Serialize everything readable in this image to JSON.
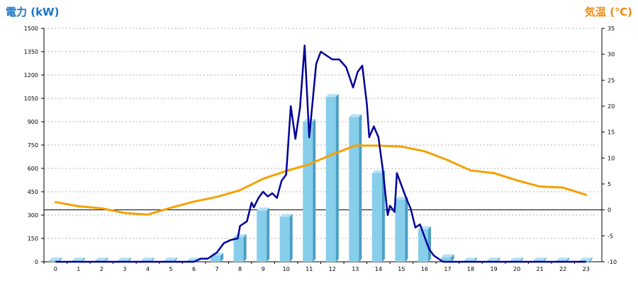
{
  "chart_data": {
    "type": "bar+line",
    "title_left": "電力 (kW)",
    "title_right": "気温 (℃)",
    "categories": [
      "0",
      "1",
      "2",
      "3",
      "4",
      "5",
      "6",
      "7",
      "8",
      "9",
      "10",
      "11",
      "12",
      "13",
      "14",
      "15",
      "16",
      "17",
      "18",
      "19",
      "20",
      "21",
      "22",
      "23"
    ],
    "ylim_left": [
      0,
      1500
    ],
    "yticks_left": [
      0,
      150,
      300,
      450,
      600,
      750,
      900,
      1050,
      1200,
      1350,
      1500
    ],
    "ylim_right": [
      -10,
      35
    ],
    "yticks_right": [
      -10,
      -5,
      0,
      5,
      10,
      15,
      20,
      25,
      30,
      35
    ],
    "grid": true,
    "colors": {
      "bar": "#87ceeb",
      "bar_side": "#4a9ec4",
      "bar_top": "#b7e1f5",
      "power_line": "#000099",
      "temp_line": "#f5a000",
      "title_left": "#1a74c7",
      "title_right": "#f08a12",
      "zero_line": "#000000",
      "grid": "#b0b0b0"
    },
    "series": [
      {
        "kind": "bar",
        "axis": "left",
        "values": [
          0,
          0,
          0,
          0,
          0,
          0,
          0,
          40,
          160,
          330,
          290,
          900,
          1060,
          930,
          570,
          400,
          210,
          30,
          0,
          0,
          0,
          0,
          0,
          0
        ]
      },
      {
        "kind": "line",
        "axis": "left",
        "x": [
          0,
          1,
          2,
          3,
          4,
          5,
          5.5,
          6,
          6.3,
          6.6,
          7,
          7.3,
          7.6,
          7.9,
          8,
          8.3,
          8.5,
          8.6,
          8.8,
          9,
          9.2,
          9.4,
          9.6,
          9.8,
          10,
          10.2,
          10.4,
          10.6,
          10.8,
          11,
          11.3,
          11.5,
          11.8,
          12,
          12.3,
          12.6,
          12.9,
          13.1,
          13.3,
          13.5,
          13.6,
          13.8,
          14,
          14.2,
          14.4,
          14.5,
          14.7,
          14.8,
          15,
          15.2,
          15.4,
          15.6,
          15.8,
          16,
          16.2,
          16.4,
          16.6,
          16.8,
          17,
          17.3,
          18,
          19,
          20,
          21,
          22,
          23
        ],
        "y": [
          0,
          0,
          0,
          0,
          0,
          0,
          0,
          0,
          20,
          20,
          60,
          120,
          140,
          150,
          230,
          260,
          380,
          350,
          410,
          450,
          420,
          440,
          410,
          520,
          560,
          1000,
          790,
          990,
          1390,
          800,
          1270,
          1350,
          1320,
          1300,
          1300,
          1250,
          1120,
          1220,
          1260,
          1010,
          800,
          870,
          800,
          580,
          300,
          360,
          320,
          570,
          490,
          410,
          340,
          220,
          240,
          160,
          80,
          40,
          20,
          0,
          0,
          0,
          0,
          0,
          0,
          0,
          0,
          0
        ]
      },
      {
        "kind": "line",
        "axis": "right",
        "x": [
          0,
          1,
          2,
          3,
          4,
          5,
          6,
          7,
          8,
          9,
          10,
          11,
          12,
          13,
          14,
          15,
          16,
          17,
          18,
          19,
          20,
          21,
          22,
          23
        ],
        "y": [
          1.5,
          0.7,
          0.3,
          -0.6,
          -0.9,
          0.4,
          1.6,
          2.5,
          3.8,
          6.0,
          7.5,
          8.8,
          10.7,
          12.4,
          12.4,
          12.2,
          11.3,
          9.6,
          7.6,
          7.1,
          5.7,
          4.5,
          4.3,
          2.9
        ]
      }
    ]
  }
}
